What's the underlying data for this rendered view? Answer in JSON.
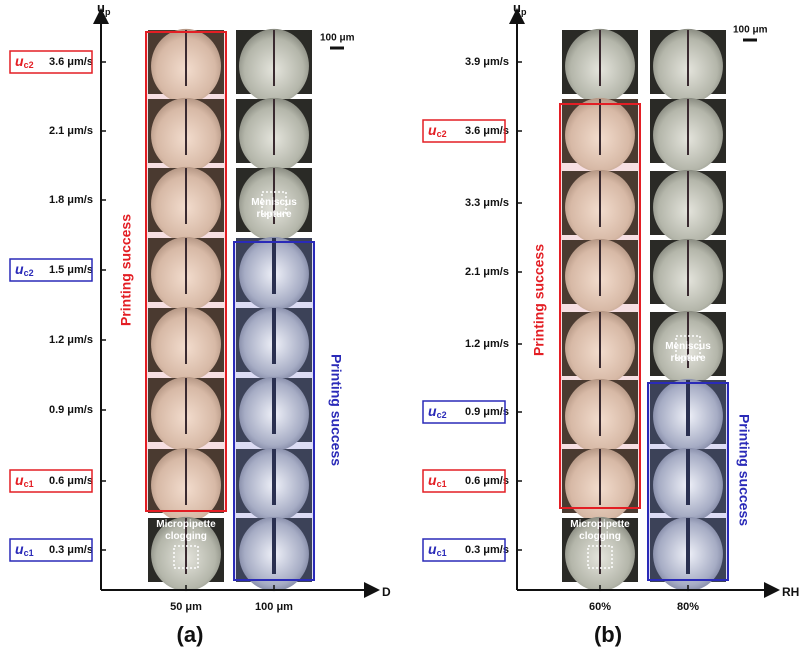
{
  "panels": [
    {
      "label": "(a)",
      "y_axis": {
        "symbol": "u",
        "subscript": "p"
      },
      "x_axis": "D",
      "columns": [
        "50 μm",
        "100 μm"
      ],
      "scale_bar": "100 μm",
      "success_left": "Printing success",
      "success_right": "Printing success",
      "annotations": [
        "Meniscus rupture",
        "Micropipette clogging"
      ],
      "rows": [
        {
          "speed": "3.6 μm/s",
          "critical": {
            "symbol": "u",
            "subscript": "c2"
          }
        },
        {
          "speed": "2.1 μm/s"
        },
        {
          "speed": "1.8 μm/s"
        },
        {
          "speed": "1.5 μm/s",
          "critical": {
            "symbol": "u",
            "subscript": "c2"
          }
        },
        {
          "speed": "1.2 μm/s"
        },
        {
          "speed": "0.9 μm/s"
        },
        {
          "speed": "0.6 μm/s",
          "critical": {
            "symbol": "u",
            "subscript": "c1"
          }
        },
        {
          "speed": "0.3 μm/s",
          "critical": {
            "symbol": "u",
            "subscript": "c1"
          }
        }
      ]
    },
    {
      "label": "(b)",
      "y_axis": {
        "symbol": "u",
        "subscript": "p"
      },
      "x_axis": "RH",
      "columns": [
        "60%",
        "80%"
      ],
      "scale_bar": "100 μm",
      "success_left": "Printing success",
      "success_right": "Printing success",
      "annotations": [
        "Meniscus rupture",
        "Micropipette clogging"
      ],
      "rows": [
        {
          "speed": "3.9 μm/s"
        },
        {
          "speed": "3.6 μm/s",
          "critical": {
            "symbol": "u",
            "subscript": "c2"
          }
        },
        {
          "speed": "3.3 μm/s"
        },
        {
          "speed": "2.1 μm/s"
        },
        {
          "speed": "1.2 μm/s"
        },
        {
          "speed": "0.9 μm/s",
          "critical": {
            "symbol": "u",
            "subscript": "c2"
          }
        },
        {
          "speed": "0.6 μm/s",
          "critical": {
            "symbol": "u",
            "subscript": "c1"
          }
        },
        {
          "speed": "0.3 μm/s",
          "critical": {
            "symbol": "u",
            "subscript": "c1"
          }
        }
      ]
    }
  ]
}
